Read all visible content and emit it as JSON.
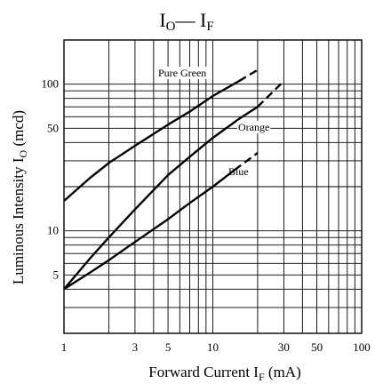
{
  "chart_data": {
    "type": "line",
    "title": {
      "main": "I",
      "sub_o": "O",
      "dash": "— ",
      "main2": "I",
      "sub_f": "F"
    },
    "xlabel": {
      "text": "Forward Current  I",
      "sub": "F",
      "unit": " (mA)"
    },
    "ylabel": {
      "text": "Luminous Intensity  I",
      "sub": "O",
      "unit": " (mcd)"
    },
    "x_scale": "log",
    "y_scale": "log",
    "xlim": [
      1,
      100
    ],
    "ylim": [
      2,
      200
    ],
    "x_ticks": [
      1,
      3,
      5,
      10,
      30,
      50,
      100
    ],
    "x_tick_labels": [
      "1",
      "3",
      "5",
      "10",
      "30",
      "50",
      "100"
    ],
    "y_ticks": [
      5,
      10,
      50,
      100
    ],
    "y_tick_labels": [
      "5",
      "10",
      "50",
      "100"
    ],
    "grid": true,
    "series": [
      {
        "name": "Pure Green",
        "points": [
          [
            1,
            16
          ],
          [
            1.5,
            23
          ],
          [
            2,
            29
          ],
          [
            3,
            38
          ],
          [
            5,
            53
          ],
          [
            7,
            65
          ],
          [
            10,
            83
          ],
          [
            15,
            105
          ]
        ],
        "dashed_points": [
          [
            15,
            105
          ],
          [
            20,
            125
          ]
        ]
      },
      {
        "name": "Orange",
        "points": [
          [
            1,
            4
          ],
          [
            1.5,
            6.5
          ],
          [
            2,
            9
          ],
          [
            3,
            14
          ],
          [
            5,
            24
          ],
          [
            7,
            32
          ],
          [
            10,
            43
          ],
          [
            15,
            58
          ],
          [
            20,
            70
          ]
        ],
        "dashed_points": [
          [
            20,
            70
          ],
          [
            30,
            105
          ]
        ]
      },
      {
        "name": "Blue",
        "points": [
          [
            1,
            4
          ],
          [
            1.5,
            5.2
          ],
          [
            2,
            6.3
          ],
          [
            3,
            8.4
          ],
          [
            5,
            12
          ],
          [
            7,
            15.5
          ],
          [
            10,
            20
          ],
          [
            14,
            26
          ]
        ],
        "dashed_points": [
          [
            14,
            26
          ],
          [
            20,
            34
          ]
        ]
      }
    ]
  }
}
